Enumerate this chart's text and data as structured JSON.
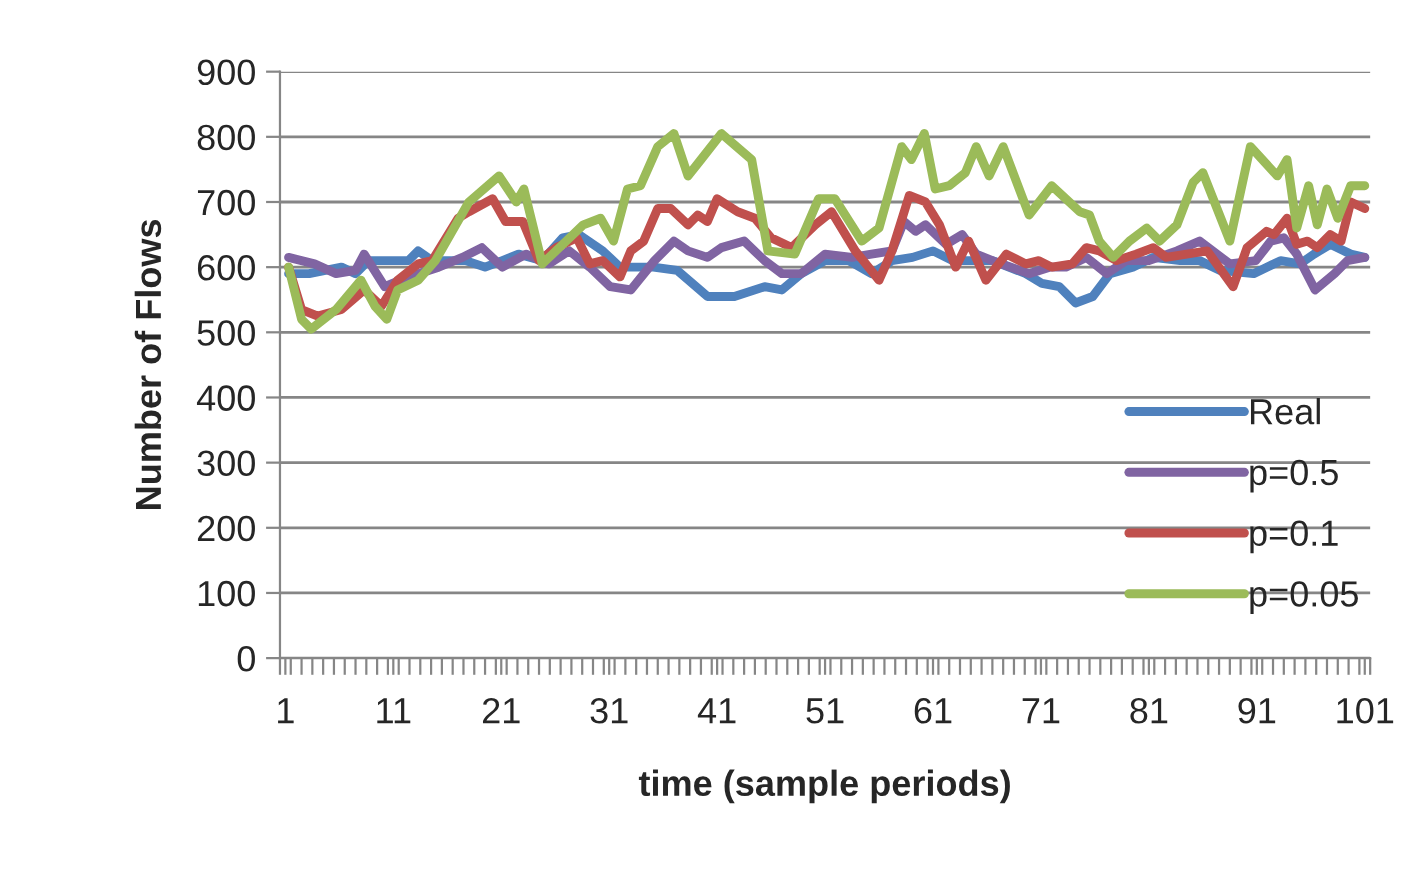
{
  "chart_data": {
    "type": "line",
    "xlabel": "time (sample periods)",
    "ylabel": "Number of Flows",
    "xlim": [
      0.5,
      101.5
    ],
    "xticks": [
      1,
      11,
      21,
      31,
      41,
      51,
      61,
      71,
      81,
      91,
      101,
      {
        "value": 0.5,
        "label": null
      },
      {
        "value": 1.5,
        "label": null
      },
      {
        "value": 2.5,
        "label": null
      },
      {
        "value": 3.5,
        "label": null
      },
      {
        "value": 4.5,
        "label": null
      },
      {
        "value": 5.5,
        "label": null
      },
      {
        "value": 6.5,
        "label": null
      },
      {
        "value": 7.5,
        "label": null
      },
      {
        "value": 8.5,
        "label": null
      },
      {
        "value": 9.5,
        "label": null
      },
      {
        "value": 10.5,
        "label": null
      },
      {
        "value": 11.5,
        "label": null
      },
      {
        "value": 12.5,
        "label": null
      },
      {
        "value": 13.5,
        "label": null
      },
      {
        "value": 14.5,
        "label": null
      },
      {
        "value": 15.5,
        "label": null
      },
      {
        "value": 16.5,
        "label": null
      },
      {
        "value": 17.5,
        "label": null
      },
      {
        "value": 18.5,
        "label": null
      },
      {
        "value": 19.5,
        "label": null
      },
      {
        "value": 20.5,
        "label": null
      },
      {
        "value": 21.5,
        "label": null
      },
      {
        "value": 22.5,
        "label": null
      },
      {
        "value": 23.5,
        "label": null
      },
      {
        "value": 24.5,
        "label": null
      },
      {
        "value": 25.5,
        "label": null
      },
      {
        "value": 26.5,
        "label": null
      },
      {
        "value": 27.5,
        "label": null
      },
      {
        "value": 28.5,
        "label": null
      },
      {
        "value": 29.5,
        "label": null
      },
      {
        "value": 30.5,
        "label": null
      },
      {
        "value": 31.5,
        "label": null
      },
      {
        "value": 32.5,
        "label": null
      },
      {
        "value": 33.5,
        "label": null
      },
      {
        "value": 34.5,
        "label": null
      },
      {
        "value": 35.5,
        "label": null
      },
      {
        "value": 36.5,
        "label": null
      },
      {
        "value": 37.5,
        "label": null
      },
      {
        "value": 38.5,
        "label": null
      },
      {
        "value": 39.5,
        "label": null
      },
      {
        "value": 40.5,
        "label": null
      },
      {
        "value": 41.5,
        "label": null
      },
      {
        "value": 42.5,
        "label": null
      },
      {
        "value": 43.5,
        "label": null
      },
      {
        "value": 44.5,
        "label": null
      },
      {
        "value": 45.5,
        "label": null
      },
      {
        "value": 46.5,
        "label": null
      },
      {
        "value": 47.5,
        "label": null
      },
      {
        "value": 48.5,
        "label": null
      },
      {
        "value": 49.5,
        "label": null
      },
      {
        "value": 50.5,
        "label": null
      },
      {
        "value": 51.5,
        "label": null
      },
      {
        "value": 52.5,
        "label": null
      },
      {
        "value": 53.5,
        "label": null
      },
      {
        "value": 54.5,
        "label": null
      },
      {
        "value": 55.5,
        "label": null
      },
      {
        "value": 56.5,
        "label": null
      },
      {
        "value": 57.5,
        "label": null
      },
      {
        "value": 58.5,
        "label": null
      },
      {
        "value": 59.5,
        "label": null
      },
      {
        "value": 60.5,
        "label": null
      },
      {
        "value": 61.5,
        "label": null
      },
      {
        "value": 62.5,
        "label": null
      },
      {
        "value": 63.5,
        "label": null
      },
      {
        "value": 64.5,
        "label": null
      },
      {
        "value": 65.5,
        "label": null
      },
      {
        "value": 66.5,
        "label": null
      },
      {
        "value": 67.5,
        "label": null
      },
      {
        "value": 68.5,
        "label": null
      },
      {
        "value": 69.5,
        "label": null
      },
      {
        "value": 70.5,
        "label": null
      },
      {
        "value": 71.5,
        "label": null
      },
      {
        "value": 72.5,
        "label": null
      },
      {
        "value": 73.5,
        "label": null
      },
      {
        "value": 74.5,
        "label": null
      },
      {
        "value": 75.5,
        "label": null
      },
      {
        "value": 76.5,
        "label": null
      },
      {
        "value": 77.5,
        "label": null
      },
      {
        "value": 78.5,
        "label": null
      },
      {
        "value": 79.5,
        "label": null
      },
      {
        "value": 80.5,
        "label": null
      },
      {
        "value": 81.5,
        "label": null
      },
      {
        "value": 82.5,
        "label": null
      },
      {
        "value": 83.5,
        "label": null
      },
      {
        "value": 84.5,
        "label": null
      },
      {
        "value": 85.5,
        "label": null
      },
      {
        "value": 86.5,
        "label": null
      },
      {
        "value": 87.5,
        "label": null
      },
      {
        "value": 88.5,
        "label": null
      },
      {
        "value": 89.5,
        "label": null
      },
      {
        "value": 90.5,
        "label": null
      },
      {
        "value": 91.5,
        "label": null
      },
      {
        "value": 92.5,
        "label": null
      },
      {
        "value": 93.5,
        "label": null
      },
      {
        "value": 94.5,
        "label": null
      },
      {
        "value": 95.5,
        "label": null
      },
      {
        "value": 96.5,
        "label": null
      },
      {
        "value": 97.5,
        "label": null
      },
      {
        "value": 98.5,
        "label": null
      },
      {
        "value": 99.5,
        "label": null
      },
      {
        "value": 100.5,
        "label": null
      },
      {
        "value": 101.5,
        "label": null
      }
    ],
    "ylim": [
      0,
      900
    ],
    "yticks": [
      0,
      100,
      200,
      300,
      400,
      500,
      600,
      700,
      800,
      900
    ],
    "grid": "y",
    "legend": "bottom right",
    "marker": "none",
    "line_style": "solid",
    "series": [
      {
        "name": "Real",
        "color": "#4f81bd",
        "x": [
          1.3,
          3.2,
          6.2,
          7.5,
          8.7,
          12.4,
          13.3,
          14.6,
          17.7,
          19.5,
          21.1,
          22.6,
          24.8,
          26.7,
          28.2,
          30.4,
          32,
          35.1,
          37.3,
          40.1,
          42.6,
          45.4,
          47,
          48.8,
          51,
          53.2,
          55.3,
          57.2,
          59.1,
          61,
          62.8,
          64.7,
          66.5,
          69.6,
          71.1,
          72.7,
          74.2,
          75.8,
          77.4,
          79.5,
          81.4,
          83.9,
          85.7,
          87.6,
          90.7,
          93.2,
          95,
          96.3,
          97.8,
          99.7,
          101
        ],
        "values": [
          590,
          590,
          600,
          590,
          610,
          610,
          625,
          610,
          610,
          600,
          610,
          620,
          610,
          645,
          650,
          625,
          600,
          600,
          595,
          555,
          555,
          570,
          565,
          590,
          610,
          610,
          590,
          610,
          615,
          625,
          610,
          610,
          610,
          590,
          575,
          570,
          545,
          555,
          590,
          600,
          615,
          610,
          610,
          595,
          590,
          610,
          605,
          620,
          635,
          620,
          615
        ]
      },
      {
        "name": "p=0.5",
        "color": "#8064a2",
        "x": [
          1.3,
          3.7,
          5.7,
          7.5,
          8.3,
          10.2,
          12.4,
          15.2,
          17.4,
          19.2,
          21.1,
          23.3,
          25.4,
          27.3,
          29.2,
          31.1,
          33,
          35.2,
          37,
          38.3,
          40.1,
          41.4,
          43.5,
          45.4,
          47,
          48.8,
          51,
          53.5,
          55.3,
          57.2,
          58.3,
          59.4,
          60.3,
          62.2,
          63.7,
          65,
          66.5,
          69.9,
          71.8,
          73.3,
          75.2,
          77.1,
          78.9,
          81,
          83.6,
          85.7,
          88.5,
          90.9,
          92.3,
          93.5,
          94.7,
          96.4,
          98.2,
          99.4,
          101
        ],
        "values": [
          615,
          605,
          590,
          595,
          620,
          570,
          585,
          600,
          615,
          630,
          600,
          620,
          605,
          625,
          600,
          570,
          565,
          610,
          640,
          625,
          615,
          630,
          640,
          610,
          590,
          590,
          620,
          615,
          620,
          625,
          670,
          655,
          665,
          635,
          650,
          620,
          610,
          590,
          600,
          600,
          615,
          590,
          610,
          610,
          625,
          640,
          605,
          610,
          640,
          645,
          620,
          565,
          590,
          610,
          615
        ]
      },
      {
        "name": "p=0.1",
        "color": "#c0504d",
        "x": [
          1.3,
          2.5,
          4,
          6.2,
          8.3,
          9.9,
          11.4,
          13.3,
          14.6,
          17,
          18,
          20.2,
          21.4,
          23,
          24.5,
          26.1,
          28,
          29.2,
          30.4,
          32,
          33,
          34.2,
          35.5,
          36.7,
          38.3,
          39.2,
          40.1,
          41,
          42.9,
          44.5,
          46,
          47.9,
          50.1,
          51.6,
          53.8,
          56,
          57.2,
          58.8,
          60.3,
          61.6,
          63.1,
          64.3,
          65.9,
          67.8,
          69.6,
          70.8,
          72,
          73.9,
          75.2,
          76.4,
          78,
          79.8,
          81.4,
          82.6,
          84.5,
          86.4,
          88.8,
          90.1,
          91.9,
          92.6,
          93.8,
          94.7,
          95.7,
          96.6,
          97.8,
          98.8,
          99.7,
          101
        ],
        "values": [
          600,
          535,
          525,
          535,
          565,
          540,
          580,
          605,
          610,
          675,
          685,
          705,
          670,
          670,
          610,
          630,
          645,
          605,
          610,
          585,
          625,
          640,
          690,
          690,
          665,
          680,
          670,
          705,
          685,
          675,
          645,
          630,
          665,
          685,
          625,
          580,
          625,
          710,
          700,
          665,
          600,
          640,
          580,
          620,
          605,
          610,
          600,
          605,
          630,
          625,
          610,
          620,
          630,
          615,
          620,
          625,
          570,
          630,
          655,
          650,
          675,
          635,
          640,
          630,
          650,
          640,
          700,
          690
        ]
      },
      {
        "name": "p=0.05",
        "color": "#9bbb59",
        "x": [
          1.3,
          2.5,
          3.4,
          5.7,
          8,
          9.3,
          10.4,
          11.4,
          13.3,
          14.9,
          18,
          20.8,
          22.4,
          23.1,
          24.8,
          26.7,
          28.6,
          30.2,
          31.4,
          32.7,
          33.9,
          35.5,
          37,
          38.3,
          39.5,
          41.4,
          44.2,
          45.7,
          48.2,
          50.4,
          51.9,
          54.4,
          56,
          58.1,
          59,
          60.2,
          61.2,
          62.5,
          64,
          65,
          66.2,
          67.5,
          69.9,
          72,
          73.3,
          74.6,
          75.5,
          76.4,
          77.7,
          79.2,
          80.8,
          82,
          83.6,
          85.1,
          86,
          88.5,
          90.4,
          92.9,
          93.8,
          94.7,
          95.8,
          96.6,
          97.5,
          98.5,
          99.7,
          101
        ],
        "values": [
          600,
          520,
          505,
          535,
          580,
          540,
          520,
          565,
          580,
          610,
          700,
          740,
          700,
          720,
          605,
          635,
          665,
          675,
          640,
          720,
          725,
          785,
          805,
          740,
          765,
          805,
          765,
          625,
          620,
          705,
          705,
          640,
          660,
          785,
          765,
          805,
          720,
          725,
          745,
          785,
          740,
          785,
          680,
          725,
          705,
          685,
          680,
          640,
          615,
          640,
          660,
          640,
          665,
          730,
          745,
          640,
          785,
          740,
          765,
          660,
          725,
          665,
          720,
          675,
          725,
          725
        ]
      }
    ]
  }
}
